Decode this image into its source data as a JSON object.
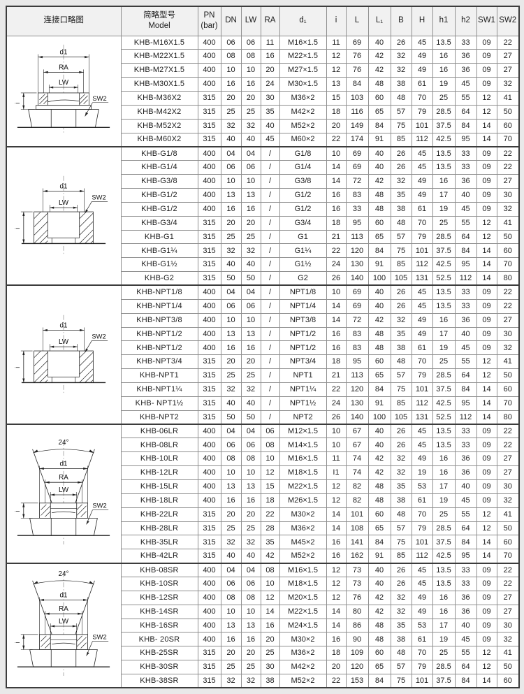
{
  "page": {
    "bg": "#e9e9e9",
    "table_bg": "#ffffff",
    "header_bg": "#f1f1f1",
    "border_light": "#8f8f8f",
    "border_dark": "#3c3c3c",
    "text_color": "#1c1c1c"
  },
  "table": {
    "headers": [
      "连接口略图",
      "简略型号\nModel",
      "PN\n(bar)",
      "DN",
      "LW",
      "RA",
      "d₁",
      "i",
      "L",
      "L₁",
      "B",
      "H",
      "h1",
      "h2",
      "SW1",
      "SW2"
    ]
  },
  "diagram_labels": {
    "d1": "d1",
    "ra": "RA",
    "lw": "LW",
    "i": "i",
    "sw2": "SW2",
    "angle": "24°"
  },
  "groups": [
    {
      "diagram_template": "metric",
      "diagram_name": "diagram-metric-thread-port",
      "rows": [
        [
          "KHB-M16X1.5",
          "400",
          "06",
          "06",
          "11",
          "M16×1.5",
          "11",
          "69",
          "40",
          "26",
          "45",
          "13.5",
          "33",
          "09",
          "22"
        ],
        [
          "KHB-M22X1.5",
          "400",
          "08",
          "08",
          "16",
          "M22×1.5",
          "12",
          "76",
          "42",
          "32",
          "49",
          "16",
          "36",
          "09",
          "27"
        ],
        [
          "KHB-M27X1.5",
          "400",
          "10",
          "10",
          "20",
          "M27×1.5",
          "12",
          "76",
          "42",
          "32",
          "49",
          "16",
          "36",
          "09",
          "27"
        ],
        [
          "KHB-M30X1.5",
          "400",
          "16",
          "16",
          "24",
          "M30×1.5",
          "13",
          "84",
          "48",
          "38",
          "61",
          "19",
          "45",
          "09",
          "32"
        ],
        [
          "KHB-M36X2",
          "315",
          "20",
          "20",
          "30",
          "M36×2",
          "15",
          "103",
          "60",
          "48",
          "70",
          "25",
          "55",
          "12",
          "41"
        ],
        [
          "KHB-M42X2",
          "315",
          "25",
          "25",
          "35",
          "M42×2",
          "18",
          "116",
          "65",
          "57",
          "79",
          "28.5",
          "64",
          "12",
          "50"
        ],
        [
          "KHB-M52X2",
          "315",
          "32",
          "32",
          "40",
          "M52×2",
          "20",
          "149",
          "84",
          "75",
          "101",
          "37.5",
          "84",
          "14",
          "60"
        ],
        [
          "KHB-M60X2",
          "315",
          "40",
          "40",
          "45",
          "M60×2",
          "22",
          "174",
          "91",
          "85",
          "112",
          "42.5",
          "95",
          "14",
          "70"
        ]
      ]
    },
    {
      "diagram_template": "block",
      "diagram_name": "diagram-g-thread-port",
      "rows": [
        [
          "KHB-G1/8",
          "400",
          "04",
          "04",
          "/",
          "G1/8",
          "10",
          "69",
          "40",
          "26",
          "45",
          "13.5",
          "33",
          "09",
          "22"
        ],
        [
          "KHB-G1/4",
          "400",
          "06",
          "06",
          "/",
          "G1/4",
          "14",
          "69",
          "40",
          "26",
          "45",
          "13.5",
          "33",
          "09",
          "22"
        ],
        [
          "KHB-G3/8",
          "400",
          "10",
          "10",
          "/",
          "G3/8",
          "14",
          "72",
          "42",
          "32",
          "49",
          "16",
          "36",
          "09",
          "27"
        ],
        [
          "KHB-G1/2",
          "400",
          "13",
          "13",
          "/",
          "G1/2",
          "16",
          "83",
          "48",
          "35",
          "49",
          "17",
          "40",
          "09",
          "30"
        ],
        [
          "KHB-G1/2",
          "400",
          "16",
          "16",
          "/",
          "G1/2",
          "16",
          "33",
          "48",
          "38",
          "61",
          "19",
          "45",
          "09",
          "32"
        ],
        [
          "KHB-G3/4",
          "315",
          "20",
          "20",
          "/",
          "G3/4",
          "18",
          "95",
          "60",
          "48",
          "70",
          "25",
          "55",
          "12",
          "41"
        ],
        [
          "KHB-G1",
          "315",
          "25",
          "25",
          "/",
          "G1",
          "21",
          "113",
          "65",
          "57",
          "79",
          "28.5",
          "64",
          "12",
          "50"
        ],
        [
          "KHB-G1¼",
          "315",
          "32",
          "32",
          "/",
          "G1¼",
          "22",
          "120",
          "84",
          "75",
          "101",
          "37.5",
          "84",
          "14",
          "60"
        ],
        [
          "KHB-G1½",
          "315",
          "40",
          "40",
          "/",
          "G1½",
          "24",
          "130",
          "91",
          "85",
          "112",
          "42.5",
          "95",
          "14",
          "70"
        ],
        [
          "KHB-G2",
          "315",
          "50",
          "50",
          "/",
          "G2",
          "26",
          "140",
          "100",
          "105",
          "131",
          "52.5",
          "112",
          "14",
          "80"
        ]
      ]
    },
    {
      "diagram_template": "block",
      "diagram_name": "diagram-npt-thread-port",
      "rows": [
        [
          "KHB-NPT1/8",
          "400",
          "04",
          "04",
          "/",
          "NPT1/8",
          "10",
          "69",
          "40",
          "26",
          "45",
          "13.5",
          "33",
          "09",
          "22"
        ],
        [
          "KHB-NPT1/4",
          "400",
          "06",
          "06",
          "/",
          "NPT1/4",
          "14",
          "69",
          "40",
          "26",
          "45",
          "13.5",
          "33",
          "09",
          "22"
        ],
        [
          "KHB-NPT3/8",
          "400",
          "10",
          "10",
          "/",
          "NPT3/8",
          "14",
          "72",
          "42",
          "32",
          "49",
          "16",
          "36",
          "09",
          "27"
        ],
        [
          "KHB-NPT1/2",
          "400",
          "13",
          "13",
          "/",
          "NPT1/2",
          "16",
          "83",
          "48",
          "35",
          "49",
          "17",
          "40",
          "09",
          "30"
        ],
        [
          "KHB-NPT1/2",
          "400",
          "16",
          "16",
          "/",
          "NPT1/2",
          "16",
          "83",
          "48",
          "38",
          "61",
          "19",
          "45",
          "09",
          "32"
        ],
        [
          "KHB-NPT3/4",
          "315",
          "20",
          "20",
          "/",
          "NPT3/4",
          "18",
          "95",
          "60",
          "48",
          "70",
          "25",
          "55",
          "12",
          "41"
        ],
        [
          "KHB-NPT1",
          "315",
          "25",
          "25",
          "/",
          "NPT1",
          "21",
          "113",
          "65",
          "57",
          "79",
          "28.5",
          "64",
          "12",
          "50"
        ],
        [
          "KHB-NPT1¼",
          "315",
          "32",
          "32",
          "/",
          "NPT1¼",
          "22",
          "120",
          "84",
          "75",
          "101",
          "37.5",
          "84",
          "14",
          "60"
        ],
        [
          "KHB- NPT1½",
          "315",
          "40",
          "40",
          "/",
          "NPT1½",
          "24",
          "130",
          "91",
          "85",
          "112",
          "42.5",
          "95",
          "14",
          "70"
        ],
        [
          "KHB-NPT2",
          "315",
          "50",
          "50",
          "/",
          "NPT2",
          "26",
          "140",
          "100",
          "105",
          "131",
          "52.5",
          "112",
          "14",
          "80"
        ]
      ]
    },
    {
      "diagram_template": "cone",
      "diagram_name": "diagram-24deg-cone-lr-port",
      "rows": [
        [
          "KHB-06LR",
          "400",
          "04",
          "04",
          "06",
          "M12×1.5",
          "10",
          "67",
          "40",
          "26",
          "45",
          "13.5",
          "33",
          "09",
          "22"
        ],
        [
          "KHB-08LR",
          "400",
          "06",
          "06",
          "08",
          "M14×1.5",
          "10",
          "67",
          "40",
          "26",
          "45",
          "13.5",
          "33",
          "09",
          "22"
        ],
        [
          "KHB-10LR",
          "400",
          "08",
          "08",
          "10",
          "M16×1.5",
          "11",
          "74",
          "42",
          "32",
          "49",
          "16",
          "36",
          "09",
          "27"
        ],
        [
          "KHB-12LR",
          "400",
          "10",
          "10",
          "12",
          "M18×1.5",
          "I1",
          "74",
          "42",
          "32",
          "19",
          "16",
          "36",
          "09",
          "27"
        ],
        [
          "KHB-15LR",
          "400",
          "13",
          "13",
          "15",
          "M22×1.5",
          "12",
          "82",
          "48",
          "35",
          "53",
          "17",
          "40",
          "09",
          "30"
        ],
        [
          "KHB-18LR",
          "400",
          "16",
          "16",
          "18",
          "M26×1.5",
          "12",
          "82",
          "48",
          "38",
          "61",
          "19",
          "45",
          "09",
          "32"
        ],
        [
          "KHB-22LR",
          "315",
          "20",
          "20",
          "22",
          "M30×2",
          "14",
          "101",
          "60",
          "48",
          "70",
          "25",
          "55",
          "12",
          "41"
        ],
        [
          "KHB-28LR",
          "315",
          "25",
          "25",
          "28",
          "M36×2",
          "14",
          "108",
          "65",
          "57",
          "79",
          "28.5",
          "64",
          "12",
          "50"
        ],
        [
          "KHB-35LR",
          "315",
          "32",
          "32",
          "35",
          "M45×2",
          "16",
          "141",
          "84",
          "75",
          "101",
          "37.5",
          "84",
          "14",
          "60"
        ],
        [
          "KHB-42LR",
          "315",
          "40",
          "40",
          "42",
          "M52×2",
          "16",
          "162",
          "91",
          "85",
          "112",
          "42.5",
          "95",
          "14",
          "70"
        ]
      ]
    },
    {
      "diagram_template": "cone",
      "diagram_name": "diagram-24deg-cone-sr-port",
      "rows": [
        [
          "KHB-08SR",
          "400",
          "04",
          "04",
          "08",
          "M16×1.5",
          "12",
          "73",
          "40",
          "26",
          "45",
          "13.5",
          "33",
          "09",
          "22"
        ],
        [
          "KHB-10SR",
          "400",
          "06",
          "06",
          "10",
          "M18×1.5",
          "12",
          "73",
          "40",
          "26",
          "45",
          "13.5",
          "33",
          "09",
          "22"
        ],
        [
          "KHB-12SR",
          "400",
          "08",
          "08",
          "12",
          "M20×1.5",
          "12",
          "76",
          "42",
          "32",
          "49",
          "16",
          "36",
          "09",
          "27"
        ],
        [
          "KHB-14SR",
          "400",
          "10",
          "10",
          "14",
          "M22×1.5",
          "14",
          "80",
          "42",
          "32",
          "49",
          "16",
          "36",
          "09",
          "27"
        ],
        [
          "KHB-16SR",
          "400",
          "13",
          "13",
          "16",
          "M24×1.5",
          "14",
          "86",
          "48",
          "35",
          "53",
          "17",
          "40",
          "09",
          "30"
        ],
        [
          "KHB- 20SR",
          "400",
          "16",
          "16",
          "20",
          "M30×2",
          "16",
          "90",
          "48",
          "38",
          "61",
          "19",
          "45",
          "09",
          "32"
        ],
        [
          "KHB-25SR",
          "315",
          "20",
          "20",
          "25",
          "M36×2",
          "18",
          "109",
          "60",
          "48",
          "70",
          "25",
          "55",
          "12",
          "41"
        ],
        [
          "KHB-30SR",
          "315",
          "25",
          "25",
          "30",
          "M42×2",
          "20",
          "120",
          "65",
          "57",
          "79",
          "28.5",
          "64",
          "12",
          "50"
        ],
        [
          "KHB-38SR",
          "315",
          "32",
          "32",
          "38",
          "M52×2",
          "22",
          "153",
          "84",
          "75",
          "101",
          "37.5",
          "84",
          "14",
          "60"
        ]
      ]
    }
  ]
}
